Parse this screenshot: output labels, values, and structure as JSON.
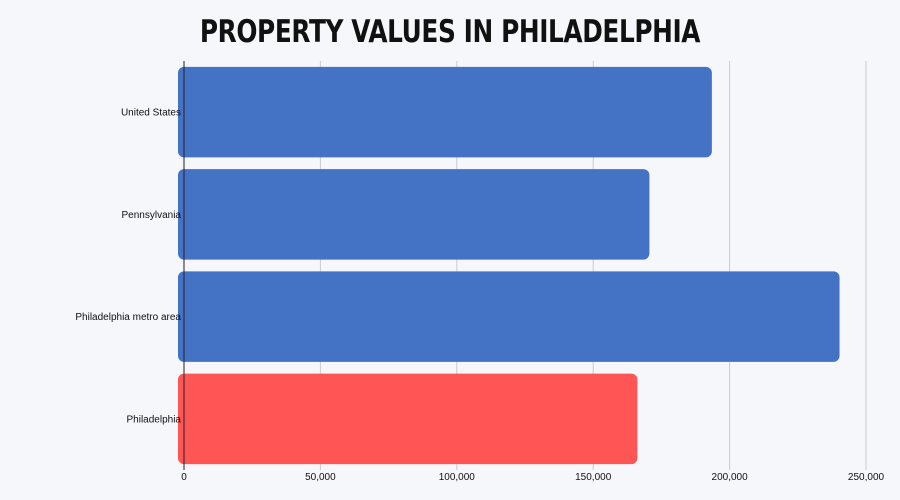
{
  "chart_data": {
    "type": "bar",
    "orientation": "horizontal",
    "title": "PROPERTY VALUES IN PHILADELPHIA",
    "xlabel": "",
    "ylabel": "",
    "categories": [
      "United States",
      "Pennsylvania",
      "Philadelphia metro area",
      "Philadelphia"
    ],
    "values": [
      193500,
      170600,
      240300,
      166200
    ],
    "bar_colors": [
      "#4472c4",
      "#4472c4",
      "#4472c4",
      "#ff5555"
    ],
    "xlim": [
      0,
      250000
    ],
    "x_ticks": [
      0,
      50000,
      100000,
      150000,
      200000,
      250000
    ],
    "x_tick_labels": [
      "0",
      "50,000",
      "100,000",
      "150,000",
      "200,000",
      "250,000"
    ],
    "grid": "vertical",
    "legend": "none"
  }
}
